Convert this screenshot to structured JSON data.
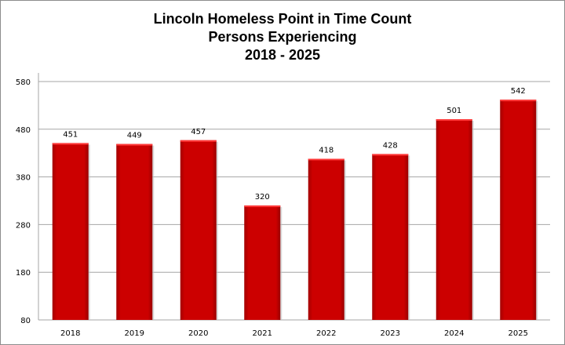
{
  "chart_data": {
    "type": "bar",
    "title": [
      "Lincoln Homeless Point in Time Count",
      "Persons Experiencing",
      "2018 - 2025"
    ],
    "categories": [
      "2018",
      "2019",
      "2020",
      "2021",
      "2022",
      "2023",
      "2024",
      "2025"
    ],
    "values": [
      451,
      449,
      457,
      320,
      418,
      428,
      501,
      542
    ],
    "xlabel": "",
    "ylabel": "",
    "ylim": [
      80,
      580
    ],
    "yticks": [
      80,
      180,
      280,
      380,
      480,
      580
    ],
    "grid": true,
    "legend": "none",
    "bar_color": "#cc0000"
  }
}
